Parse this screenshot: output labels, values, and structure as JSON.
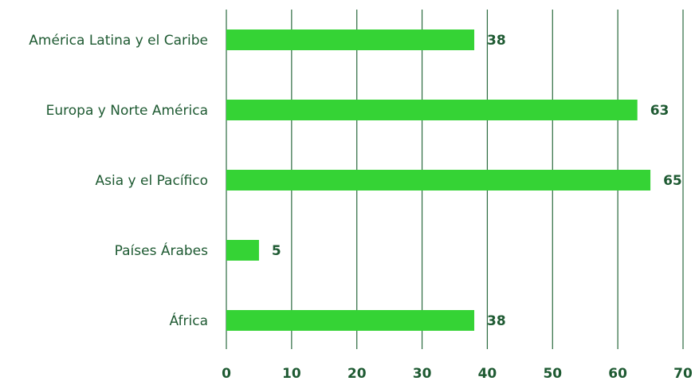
{
  "chart_data": {
    "type": "bar",
    "orientation": "horizontal",
    "categories": [
      "América Latina y el Caribe",
      "Europa y Norte América",
      "Asia y el Pacífico",
      "Países Árabes",
      "África"
    ],
    "values": [
      38,
      63,
      65,
      5,
      38
    ],
    "data_labels": [
      "38",
      "63",
      "65",
      "5",
      "38"
    ],
    "xlim": [
      0,
      70
    ],
    "xticks": [
      0,
      10,
      20,
      30,
      40,
      50,
      60,
      70
    ],
    "xtick_labels": [
      "0",
      "10",
      "20",
      "30",
      "40",
      "50",
      "60",
      "70"
    ],
    "grid": "vertical",
    "legend": "none"
  },
  "colors": {
    "bar": "#35d335",
    "grid": "#2b6a3f",
    "text": "#1e5a32"
  }
}
